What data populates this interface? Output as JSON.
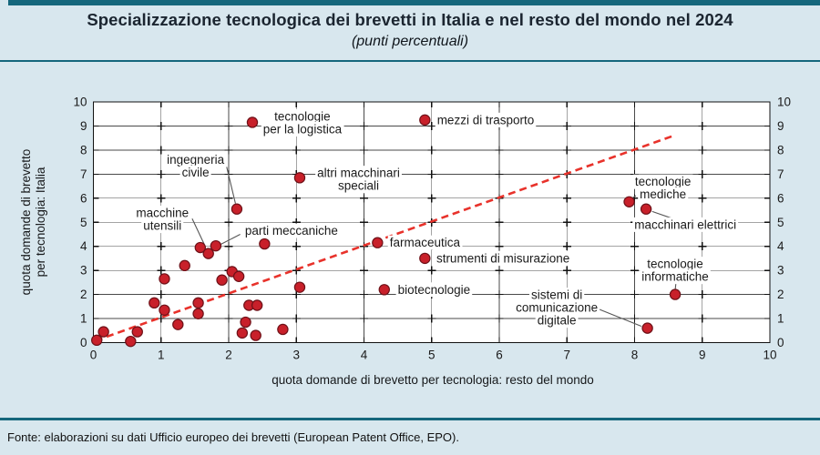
{
  "header": {
    "title": "Specializzazione tecnologica dei brevetti in Italia e nel resto del mondo nel 2024",
    "subtitle": "(punti percentuali)"
  },
  "footer": {
    "source": "Fonte: elaborazioni su dati Ufficio europeo dei brevetti (European Patent Office, EPO)."
  },
  "colors": {
    "accent_teal": "#15677c",
    "page_background": "#d8e7ee",
    "plot_background": "#ffffff",
    "grid": "#4a4a4a",
    "frame": "#111111",
    "point_fill": "#c8202a",
    "point_stroke": "#6e1118",
    "trend_red": "#e8322b",
    "leader_gray": "#555555",
    "text": "#1a1a1a"
  },
  "chart_data": {
    "type": "scatter",
    "title": "Specializzazione tecnologica dei brevetti in Italia e nel resto del mondo nel 2024",
    "subtitle": "(punti percentuali)",
    "xlabel": "quota domande di brevetto per tecnologia: resto del mondo",
    "ylabel_lines": [
      "quota domande di brevetto",
      "per tecnologia: Italia"
    ],
    "xlim": [
      0,
      10
    ],
    "ylim": [
      0,
      10
    ],
    "xticks": [
      0,
      1,
      2,
      3,
      4,
      5,
      6,
      7,
      8,
      9,
      10
    ],
    "yticks": [
      0,
      1,
      2,
      3,
      4,
      5,
      6,
      7,
      8,
      9,
      10
    ],
    "grid": true,
    "mirror_y_ticks": true,
    "trend_line": {
      "style": "dashed",
      "from": [
        0.03,
        0.08
      ],
      "to": [
        8.58,
        8.6
      ]
    },
    "labeled_points": [
      {
        "name": "tecnologie per la logistica",
        "x": 2.35,
        "y": 9.15,
        "lines": [
          "tecnologie",
          "per la logistica"
        ],
        "lx": 3.09,
        "ly": 9.13,
        "align": "center",
        "leader": null
      },
      {
        "name": "mezzi di trasporto",
        "x": 4.9,
        "y": 9.25,
        "lines": [
          "mezzi di trasporto"
        ],
        "lx": 5.08,
        "ly": 9.25,
        "align": "left",
        "leader": null
      },
      {
        "name": "altri macchinari speciali",
        "x": 3.05,
        "y": 6.85,
        "lines": [
          "altri macchinari",
          "speciali"
        ],
        "lx": 3.92,
        "ly": 6.78,
        "align": "center",
        "leader": null
      },
      {
        "name": "ingegneria civile",
        "x": 2.12,
        "y": 5.55,
        "lines": [
          "ingegneria",
          "civile"
        ],
        "lx": 1.51,
        "ly": 7.33,
        "align": "center",
        "leader": [
          [
            1.97,
            7.3
          ],
          [
            2.1,
            5.78
          ]
        ]
      },
      {
        "name": "tecnologie mediche",
        "x": 7.92,
        "y": 5.85,
        "lines": [
          "tecnologie",
          "mediche"
        ],
        "lx": 8.42,
        "ly": 6.42,
        "align": "center",
        "leader": [
          [
            8.02,
            6.1
          ],
          [
            7.95,
            5.98
          ]
        ]
      },
      {
        "name": "macchinari elettrici",
        "x": 8.17,
        "y": 5.55,
        "lines": [
          "macchinari elettrici"
        ],
        "lx": 8.75,
        "ly": 4.9,
        "align": "center",
        "leader": [
          [
            8.68,
            5.04
          ],
          [
            8.26,
            5.45
          ]
        ]
      },
      {
        "name": "macchine utensili",
        "x": 1.58,
        "y": 3.95,
        "lines": [
          "macchine",
          "utensili"
        ],
        "lx": 1.02,
        "ly": 5.12,
        "align": "center",
        "leader": [
          [
            1.46,
            5.15
          ],
          [
            1.64,
            4.08
          ]
        ]
      },
      {
        "name": "parti meccaniche",
        "x": 1.81,
        "y": 4.02,
        "lines": [
          "parti meccaniche"
        ],
        "lx": 2.24,
        "ly": 4.65,
        "align": "left",
        "leader": [
          [
            2.17,
            4.5
          ],
          [
            1.86,
            4.05
          ]
        ]
      },
      {
        "name": "farmaceutica",
        "x": 4.2,
        "y": 4.15,
        "lines": [
          "farmaceutica"
        ],
        "lx": 4.38,
        "ly": 4.15,
        "align": "left",
        "leader": null
      },
      {
        "name": "strumenti di misurazione",
        "x": 4.9,
        "y": 3.5,
        "lines": [
          "strumenti di misurazione"
        ],
        "lx": 5.07,
        "ly": 3.5,
        "align": "left",
        "leader": null
      },
      {
        "name": "biotecnologie",
        "x": 4.3,
        "y": 2.2,
        "lines": [
          "biotecnologie"
        ],
        "lx": 4.5,
        "ly": 2.2,
        "align": "left",
        "leader": null
      },
      {
        "name": "tecnologie informatiche",
        "x": 8.6,
        "y": 2.0,
        "lines": [
          "tecnologie",
          "informatiche"
        ],
        "lx": 8.6,
        "ly": 3.0,
        "align": "center",
        "leader": [
          [
            8.61,
            2.45
          ],
          [
            8.6,
            2.18
          ]
        ]
      },
      {
        "name": "sistemi di comunicazione digitale",
        "x": 8.19,
        "y": 0.6,
        "lines": [
          "sistemi di",
          "comunicazione",
          "digitale"
        ],
        "lx": 6.85,
        "ly": 1.45,
        "align": "center",
        "leader": [
          [
            7.48,
            1.38
          ],
          [
            8.1,
            0.68
          ]
        ]
      }
    ],
    "unlabeled_points": [
      [
        0.05,
        0.1
      ],
      [
        0.15,
        0.45
      ],
      [
        0.55,
        0.05
      ],
      [
        0.65,
        0.45
      ],
      [
        0.9,
        1.65
      ],
      [
        1.05,
        2.65
      ],
      [
        1.05,
        1.35
      ],
      [
        1.25,
        0.75
      ],
      [
        1.35,
        3.2
      ],
      [
        1.55,
        1.65
      ],
      [
        1.55,
        1.2
      ],
      [
        1.7,
        3.7
      ],
      [
        1.9,
        2.6
      ],
      [
        2.05,
        2.95
      ],
      [
        2.15,
        2.75
      ],
      [
        2.3,
        1.55
      ],
      [
        2.42,
        1.55
      ],
      [
        2.25,
        0.85
      ],
      [
        2.2,
        0.4
      ],
      [
        2.4,
        0.3
      ],
      [
        2.53,
        4.1
      ],
      [
        2.8,
        0.55
      ],
      [
        3.05,
        2.3
      ]
    ]
  }
}
